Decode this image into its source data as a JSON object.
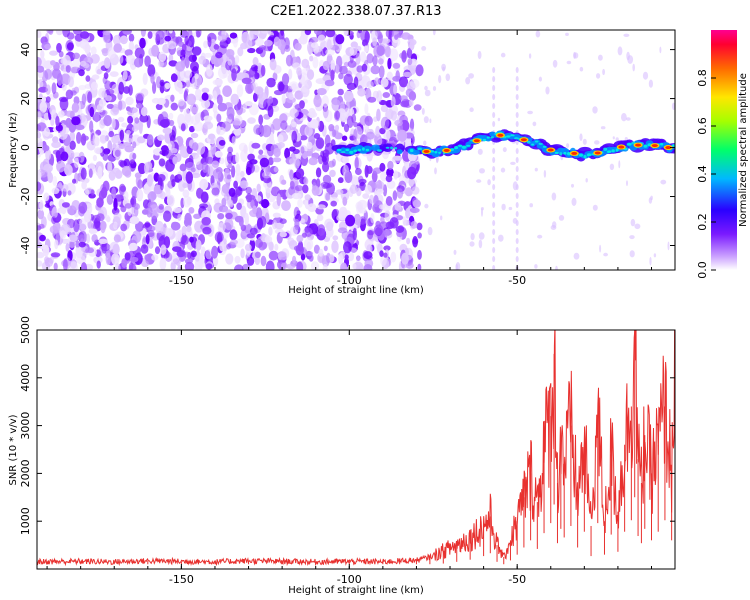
{
  "title": "C2E1.2022.338.07.37.R13",
  "chart_data": [
    {
      "type": "heatmap",
      "title": "",
      "xlabel": "Height of straight line (km)",
      "ylabel": "Frequency (Hz)",
      "xlim": [
        -193,
        -3
      ],
      "ylim": [
        -50,
        48
      ],
      "xticks": [
        -150,
        -100,
        -50
      ],
      "yticks": [
        -40,
        -20,
        0,
        20,
        40
      ],
      "colorbar": {
        "label": "Normalized spectral amplitude",
        "range": [
          0.0,
          1.0
        ],
        "ticks": [
          0.0,
          0.2,
          0.4,
          0.6,
          0.8
        ]
      },
      "ridge": {
        "description_units": "frequency (Hz) vs height (km)",
        "x": [
          -103,
          -95,
          -85,
          -80,
          -75,
          -70,
          -65,
          -60,
          -55,
          -50,
          -45,
          -40,
          -35,
          -30,
          -25,
          -20,
          -15,
          -10,
          -5,
          -3
        ],
        "y": [
          -1,
          -1,
          -1,
          -1,
          -2,
          -1,
          1,
          4,
          5,
          4,
          2,
          -1,
          -2,
          -3,
          -2,
          0,
          1,
          1,
          0,
          0
        ]
      }
    },
    {
      "type": "line",
      "title": "",
      "xlabel": "Height of straight line (km)",
      "ylabel": "SNR (10 * v/v)",
      "xlim": [
        -193,
        -3
      ],
      "ylim": [
        0,
        5000
      ],
      "xticks": [
        -150,
        -100,
        -50
      ],
      "yticks": [
        1000,
        2000,
        3000,
        4000,
        5000
      ],
      "series": [
        {
          "name": "SNR",
          "color": "#e8312f",
          "x": [
            -193,
            -180,
            -170,
            -160,
            -150,
            -140,
            -130,
            -120,
            -110,
            -100,
            -90,
            -85,
            -80,
            -76,
            -72,
            -68,
            -64,
            -60,
            -58,
            -56,
            -54,
            -52,
            -50,
            -48,
            -46,
            -44,
            -42,
            -40,
            -39,
            -38,
            -37,
            -36,
            -34,
            -32,
            -30,
            -28,
            -26,
            -24,
            -22,
            -20,
            -18,
            -16,
            -15,
            -14,
            -13,
            -12,
            -10,
            -8,
            -6,
            -4,
            -3
          ],
          "y": [
            150,
            160,
            150,
            170,
            160,
            150,
            170,
            160,
            150,
            160,
            150,
            170,
            180,
            250,
            380,
            500,
            650,
            900,
            1100,
            500,
            250,
            600,
            1000,
            1500,
            2000,
            1400,
            2500,
            3200,
            4500,
            1800,
            2800,
            2200,
            3000,
            1500,
            2600,
            900,
            3200,
            1000,
            2400,
            1200,
            2600,
            3400,
            5000,
            2300,
            1800,
            2800,
            2000,
            2600,
            3400,
            2000,
            4900
          ]
        }
      ]
    }
  ]
}
